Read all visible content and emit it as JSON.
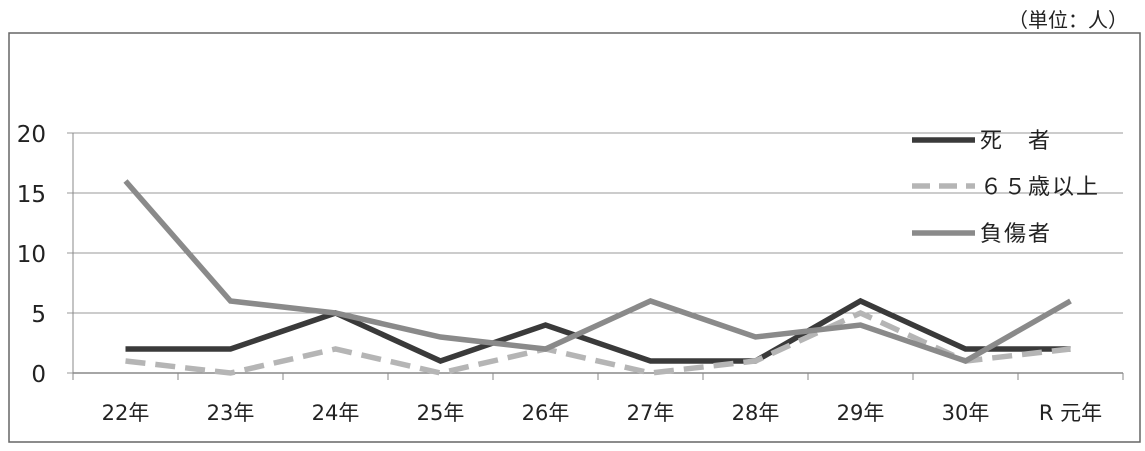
{
  "unit_label": "（単位：人）",
  "colors": {
    "frame": "#666666",
    "grid": "#9a9a9a",
    "text": "#222222"
  },
  "chart_data": {
    "type": "line",
    "title": "",
    "xlabel": "",
    "ylabel": "",
    "categories": [
      "22年",
      "23年",
      "24年",
      "25年",
      "26年",
      "27年",
      "28年",
      "29年",
      "30年",
      "R 元年"
    ],
    "ylim": [
      0,
      20
    ],
    "yticks": [
      0,
      5,
      10,
      15,
      20
    ],
    "grid": true,
    "legend_position": "right",
    "series": [
      {
        "name": "死　者",
        "values": [
          2,
          2,
          5,
          1,
          4,
          1,
          1,
          6,
          2,
          2
        ],
        "color": "#3a3a3a",
        "dash": "solid"
      },
      {
        "name": "６５歳以上",
        "values": [
          1,
          0,
          2,
          0,
          2,
          0,
          1,
          5,
          1,
          2
        ],
        "color": "#b5b5b5",
        "dash": "dashed"
      },
      {
        "name": "負傷者",
        "values": [
          16,
          6,
          5,
          3,
          2,
          6,
          3,
          4,
          1,
          6
        ],
        "color": "#8a8a8a",
        "dash": "solid"
      }
    ]
  }
}
